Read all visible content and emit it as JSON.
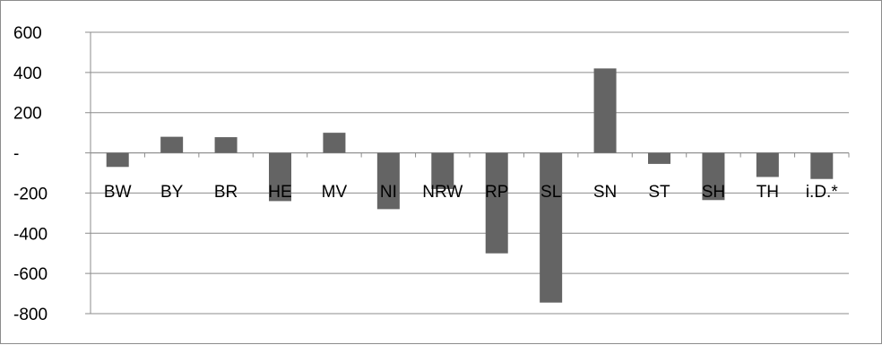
{
  "chart_data": {
    "type": "bar",
    "categories": [
      "BW",
      "BY",
      "BR",
      "HE",
      "MV",
      "NI",
      "NRW",
      "RP",
      "SL",
      "SN",
      "ST",
      "SH",
      "TH",
      "i.D.*"
    ],
    "values": [
      -70,
      80,
      78,
      -240,
      100,
      -280,
      -180,
      -500,
      -745,
      420,
      -55,
      -235,
      -120,
      -130
    ],
    "ylim": [
      -800,
      600
    ],
    "yticks": [
      600,
      400,
      200,
      0,
      -200,
      -400,
      -600,
      -800
    ],
    "ytick_labels": [
      "600",
      "400",
      "200",
      "-",
      "-200",
      "-400",
      "-600",
      "-800"
    ],
    "grid": true,
    "bar_color": "#646464",
    "title": "",
    "xlabel": "",
    "ylabel": ""
  }
}
